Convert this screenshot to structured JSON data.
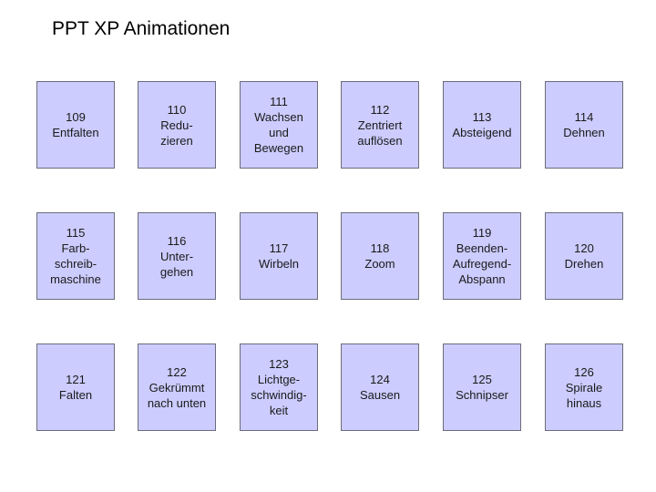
{
  "title": "PPT XP Animationen",
  "tiles": [
    "109\nEntfalten",
    "110\nRedu-\nzieren",
    "111\nWachsen\nund\nBewegen",
    "112\nZentriert\nauflösen",
    "113\nAbsteigend",
    "114\nDehnen",
    "115\nFarb-\nschreib-\nmaschine",
    "116\nUnter-\ngehen",
    "117\nWirbeln",
    "118\nZoom",
    "119\nBeenden-\nAufregend-\nAbspann",
    "120\nDrehen",
    "121\nFalten",
    "122\nGekrümmt\nnach unten",
    "123\nLichtge-\nschwindig-\nkeit",
    "124\nSausen",
    "125\nSchnipser",
    "126\nSpirale\nhinaus"
  ],
  "colors": {
    "tile_fill": "#ccccff",
    "tile_border": "#6c6c7c",
    "background": "#ffffff"
  }
}
